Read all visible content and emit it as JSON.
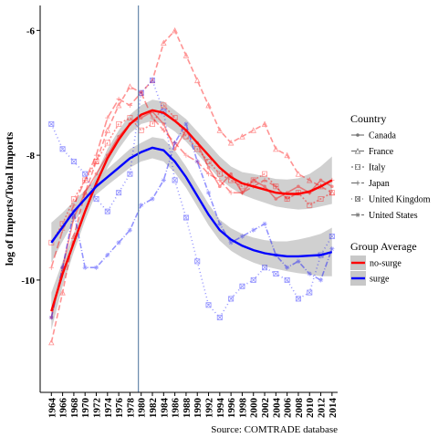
{
  "chart_data": {
    "type": "line",
    "title": "",
    "xlabel": "",
    "ylabel": "log of Imports/Total Imports",
    "caption": "Source: COMTRADE database",
    "xlim": [
      1962,
      2015
    ],
    "ylim": [
      -11.8,
      -5.6
    ],
    "x_ticks": [
      "1964",
      "1966",
      "1968",
      "1970",
      "1972",
      "1974",
      "1976",
      "1978",
      "1980",
      "1982",
      "1984",
      "1986",
      "1988",
      "1990",
      "1992",
      "1994",
      "1996",
      "1998",
      "2000",
      "2002",
      "2004",
      "2006",
      "2008",
      "2010",
      "2012",
      "2014"
    ],
    "y_ticks": [
      -10,
      -8,
      -6
    ],
    "y_tick_labels": [
      "-10",
      "-8",
      "-6"
    ],
    "vertical_line": {
      "x": 1979.5,
      "color": "#6688aa"
    },
    "colors": {
      "surge": "#0000ff",
      "no_surge": "#ff0000",
      "ribbon": "#c8c8c8"
    },
    "legend": {
      "country_title": "Country",
      "country_items": [
        {
          "label": "Canada",
          "dash": "",
          "marker": "dot"
        },
        {
          "label": "France",
          "dash": "6,3",
          "marker": "triangle"
        },
        {
          "label": "Italy",
          "dash": "2,2",
          "marker": "square"
        },
        {
          "label": "Japan",
          "dash": "8,3",
          "marker": "plus"
        },
        {
          "label": "United Kingdom",
          "dash": "1,3",
          "marker": "boxx"
        },
        {
          "label": "United States",
          "dash": "6,2,1,2",
          "marker": "star"
        }
      ],
      "group_title": "Group Average",
      "group_items": [
        {
          "label": "no-surge",
          "color": "#ff0000"
        },
        {
          "label": "surge",
          "color": "#0000ff"
        }
      ]
    },
    "series": [
      {
        "name": "no-surge",
        "group": "average",
        "color": "#ff0000",
        "x": [
          1964,
          1966,
          1968,
          1970,
          1972,
          1974,
          1976,
          1978,
          1980,
          1982,
          1984,
          1986,
          1988,
          1990,
          1992,
          1994,
          1996,
          1998,
          2000,
          2002,
          2004,
          2006,
          2008,
          2010,
          2012,
          2014
        ],
        "values": [
          -10.5,
          -9.9,
          -9.4,
          -8.9,
          -8.45,
          -8.05,
          -7.75,
          -7.5,
          -7.35,
          -7.28,
          -7.32,
          -7.45,
          -7.6,
          -7.8,
          -8.0,
          -8.2,
          -8.35,
          -8.45,
          -8.5,
          -8.55,
          -8.6,
          -8.62,
          -8.62,
          -8.58,
          -8.5,
          -8.4
        ],
        "lower": [
          -10.8,
          -10.1,
          -9.55,
          -9.05,
          -8.6,
          -8.2,
          -7.9,
          -7.65,
          -7.5,
          -7.45,
          -7.5,
          -7.62,
          -7.78,
          -7.98,
          -8.18,
          -8.38,
          -8.52,
          -8.63,
          -8.7,
          -8.76,
          -8.82,
          -8.85,
          -8.87,
          -8.86,
          -8.82,
          -8.78
        ],
        "upper": [
          -10.2,
          -9.7,
          -9.25,
          -8.75,
          -8.3,
          -7.9,
          -7.6,
          -7.35,
          -7.2,
          -7.11,
          -7.14,
          -7.28,
          -7.42,
          -7.62,
          -7.82,
          -8.02,
          -8.18,
          -8.27,
          -8.3,
          -8.34,
          -8.38,
          -8.39,
          -8.37,
          -8.3,
          -8.18,
          -8.02
        ]
      },
      {
        "name": "surge",
        "group": "average",
        "color": "#0000ff",
        "x": [
          1964,
          1966,
          1968,
          1970,
          1972,
          1974,
          1976,
          1978,
          1980,
          1982,
          1984,
          1986,
          1988,
          1990,
          1992,
          1994,
          1996,
          1998,
          2000,
          2002,
          2004,
          2006,
          2008,
          2010,
          2012,
          2014
        ],
        "values": [
          -9.4,
          -9.15,
          -8.9,
          -8.7,
          -8.5,
          -8.35,
          -8.2,
          -8.05,
          -7.95,
          -7.88,
          -7.92,
          -8.1,
          -8.35,
          -8.65,
          -8.95,
          -9.2,
          -9.35,
          -9.45,
          -9.52,
          -9.57,
          -9.6,
          -9.62,
          -9.62,
          -9.61,
          -9.6,
          -9.55
        ],
        "lower": [
          -9.72,
          -9.38,
          -9.06,
          -8.84,
          -8.63,
          -8.48,
          -8.34,
          -8.2,
          -8.1,
          -8.05,
          -8.1,
          -8.28,
          -8.52,
          -8.82,
          -9.12,
          -9.37,
          -9.53,
          -9.64,
          -9.72,
          -9.78,
          -9.82,
          -9.86,
          -9.89,
          -9.91,
          -9.94,
          -9.94
        ],
        "upper": [
          -9.08,
          -8.92,
          -8.74,
          -8.56,
          -8.37,
          -8.22,
          -8.06,
          -7.9,
          -7.8,
          -7.71,
          -7.74,
          -7.92,
          -8.18,
          -8.48,
          -8.78,
          -9.03,
          -9.17,
          -9.26,
          -9.32,
          -9.36,
          -9.38,
          -9.38,
          -9.35,
          -9.31,
          -9.26,
          -9.16
        ]
      },
      {
        "name": "Canada",
        "group": "no-surge",
        "color": "#ff0000",
        "x": [
          1964,
          1966,
          1968,
          1970,
          1972,
          1974,
          1976,
          1978,
          1980,
          1982,
          1984,
          1986,
          1988,
          1990,
          1992,
          1994,
          1996,
          1998,
          2000,
          2002,
          2004,
          2006,
          2008,
          2010,
          2012,
          2014
        ],
        "values": [
          -10.6,
          -9.8,
          -9.0,
          -8.6,
          -8.3,
          -8.0,
          -7.7,
          -7.5,
          -7.4,
          -7.3,
          -7.5,
          -7.9,
          -7.6,
          -7.8,
          -8.2,
          -8.5,
          -8.3,
          -8.6,
          -8.4,
          -8.5,
          -8.7,
          -8.6,
          -8.5,
          -8.6,
          -8.4,
          -8.5
        ]
      },
      {
        "name": "France",
        "group": "no-surge",
        "color": "#ff0000",
        "x": [
          1964,
          1966,
          1968,
          1970,
          1972,
          1974,
          1976,
          1978,
          1980,
          1982,
          1984,
          1986,
          1988,
          1990,
          1992,
          1994,
          1996,
          1998,
          2000,
          2002,
          2004,
          2006,
          2008,
          2010,
          2012,
          2014
        ],
        "values": [
          -11.0,
          -10.2,
          -9.3,
          -8.6,
          -8.1,
          -7.6,
          -7.2,
          -6.9,
          -7.0,
          -6.8,
          -6.2,
          -6.0,
          -6.4,
          -6.8,
          -7.2,
          -7.6,
          -7.8,
          -7.7,
          -7.6,
          -7.5,
          -7.9,
          -8.0,
          -8.3,
          -8.4,
          -8.5,
          -8.6
        ]
      },
      {
        "name": "Italy",
        "group": "no-surge",
        "color": "#ff0000",
        "x": [
          1964,
          1966,
          1968,
          1970,
          1972,
          1974,
          1976,
          1978,
          1980,
          1982,
          1984,
          1986,
          1988,
          1990,
          1992,
          1994,
          1996,
          1998,
          2000,
          2002,
          2004,
          2006,
          2008,
          2010,
          2012,
          2014
        ],
        "values": [
          -9.4,
          -9.1,
          -8.7,
          -8.4,
          -8.1,
          -7.8,
          -7.5,
          -7.4,
          -7.6,
          -7.5,
          -7.2,
          -7.4,
          -7.7,
          -7.9,
          -8.1,
          -8.3,
          -8.4,
          -8.5,
          -8.4,
          -8.3,
          -8.5,
          -8.7,
          -8.6,
          -8.8,
          -8.7,
          -8.6
        ]
      },
      {
        "name": "Japan",
        "group": "no-surge",
        "color": "#ff0000",
        "x": [
          1964,
          1966,
          1968,
          1970,
          1972,
          1974,
          1976,
          1978,
          1980,
          1982,
          1984,
          1986,
          1988,
          1990,
          1992,
          1994,
          1996,
          1998,
          2000,
          2002,
          2004,
          2006,
          2008,
          2010,
          2012,
          2014
        ],
        "values": [
          -9.8,
          -9.2,
          -8.8,
          -8.4,
          -8.0,
          -7.4,
          -7.1,
          -7.2,
          -7.0,
          -7.4,
          -7.6,
          -7.8,
          -8.0,
          -8.1,
          -8.3,
          -8.4,
          -8.6,
          -8.6,
          -8.5,
          -8.4,
          -8.5,
          -8.7,
          -8.6,
          -8.6,
          -8.5,
          -8.4
        ]
      },
      {
        "name": "United Kingdom",
        "group": "surge",
        "color": "#0000ff",
        "x": [
          1964,
          1966,
          1968,
          1970,
          1972,
          1974,
          1976,
          1978,
          1980,
          1982,
          1984,
          1986,
          1988,
          1990,
          1992,
          1994,
          1996,
          1998,
          2000,
          2002,
          2004,
          2006,
          2008,
          2010,
          2012,
          2014
        ],
        "values": [
          -7.5,
          -7.9,
          -8.1,
          -8.3,
          -8.7,
          -8.9,
          -8.6,
          -8.3,
          -7.0,
          -6.8,
          -7.3,
          -8.4,
          -9.0,
          -9.7,
          -10.4,
          -10.6,
          -10.3,
          -10.1,
          -10.0,
          -9.8,
          -9.9,
          -10.0,
          -10.3,
          -10.2,
          -9.6,
          -9.3
        ]
      },
      {
        "name": "United States",
        "group": "surge",
        "color": "#0000ff",
        "x": [
          1964,
          1966,
          1968,
          1970,
          1972,
          1974,
          1976,
          1978,
          1980,
          1982,
          1984,
          1986,
          1988,
          1990,
          1992,
          1994,
          1996,
          1998,
          2000,
          2002,
          2004,
          2006,
          2008,
          2010,
          2012,
          2014
        ],
        "values": [
          -10.6,
          -9.8,
          -8.9,
          -9.8,
          -9.8,
          -9.6,
          -9.4,
          -9.2,
          -8.8,
          -8.7,
          -8.4,
          -7.8,
          -7.5,
          -8.1,
          -8.6,
          -9.1,
          -9.4,
          -9.3,
          -9.2,
          -9.1,
          -9.6,
          -9.8,
          -9.7,
          -9.9,
          -10.0,
          -9.5
        ]
      }
    ]
  }
}
